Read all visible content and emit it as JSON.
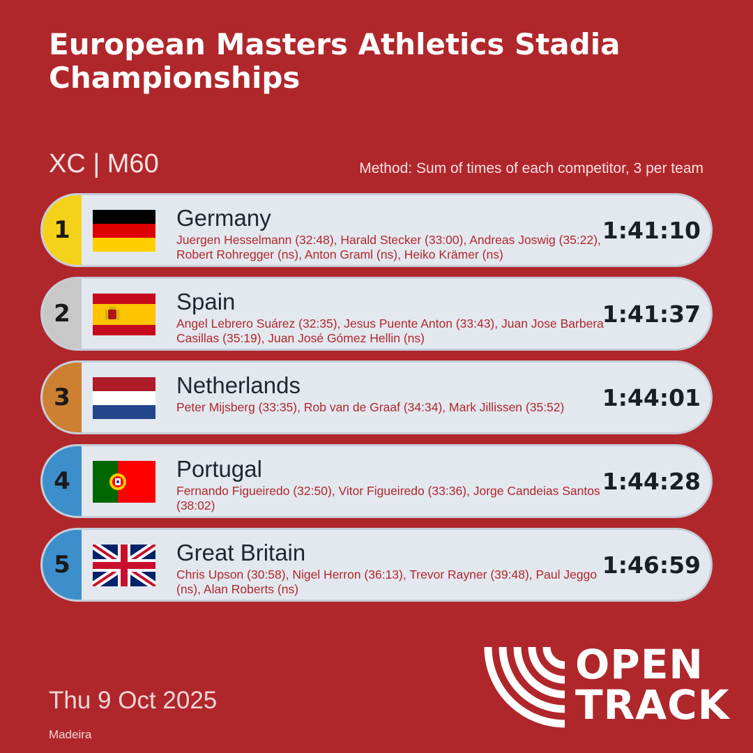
{
  "title": "European Masters Athletics Stadia Championships",
  "subtitle": "XC | M60",
  "method": "Method: Sum of times of each competitor, 3 per team",
  "results": [
    {
      "rank": "1",
      "country": "Germany",
      "flag": "germany-flag",
      "rank_color": "#f5d21a",
      "members": "Juergen Hesselmann (32:48), Harald Stecker (33:00), Andreas Joswig (35:22), Robert Rohregger (ns), Anton Graml (ns), Heiko Krämer (ns)",
      "time": "1:41:10"
    },
    {
      "rank": "2",
      "country": "Spain",
      "flag": "spain-flag",
      "rank_color": "#c8c8c8",
      "members": "Angel Lebrero Suárez (32:35), Jesus Puente Anton (33:43), Juan Jose Barbera Casillas (35:19), Juan José Gómez Hellin (ns)",
      "time": "1:41:37"
    },
    {
      "rank": "3",
      "country": "Netherlands",
      "flag": "netherlands-flag",
      "rank_color": "#cd7f32",
      "members": "Peter Mijsberg (33:35), Rob van de Graaf (34:34), Mark Jillissen (35:52)",
      "time": "1:44:01"
    },
    {
      "rank": "4",
      "country": "Portugal",
      "flag": "portugal-flag",
      "rank_color": "#3d8fcc",
      "members": "Fernando Figueiredo (32:50), Vitor Figueiredo (33:36), Jorge Candeias Santos (38:02)",
      "time": "1:44:28"
    },
    {
      "rank": "5",
      "country": "Great Britain",
      "flag": "great-britain-flag",
      "rank_color": "#3d8fcc",
      "members": "Chris Upson (30:58), Nigel Herron (36:13), Trevor Rayner (39:48), Paul Jeggo (ns), Alan Roberts (ns)",
      "time": "1:46:59"
    }
  ],
  "date": "Thu 9 Oct 2025",
  "location": "Madeira",
  "logo": {
    "line1": "OPEN",
    "line2": "TRACK"
  },
  "colors": {
    "background": "#b0272b",
    "row_background": "#e3e8ef",
    "member_text": "#b0272b"
  }
}
